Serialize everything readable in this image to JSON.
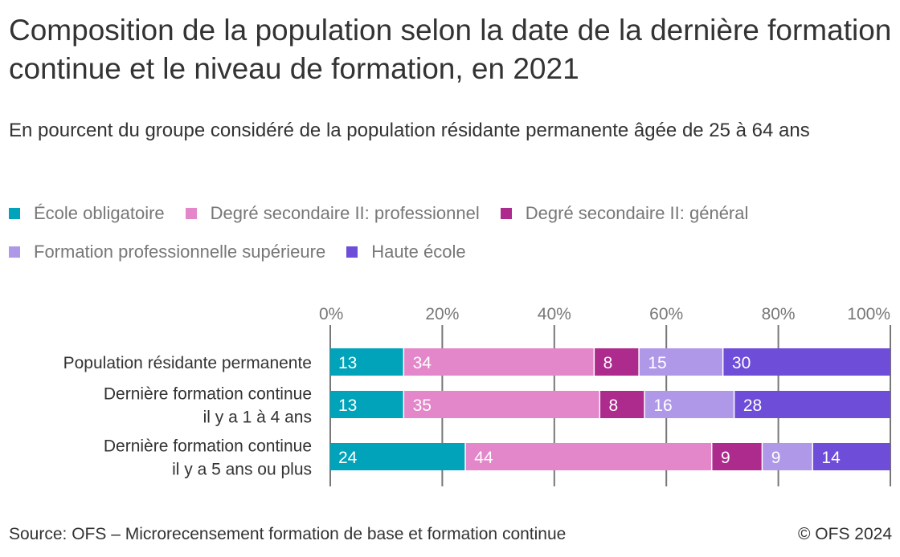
{
  "title": "Composition de la population selon la date de la dernière formation continue et le niveau de formation, en 2021",
  "subtitle": "En pourcent du groupe considéré de la population résidante permanente âgée de 25 à 64 ans",
  "source": "Source: OFS – Microrecensement formation de base et formation continue",
  "copyright": "© OFS 2024",
  "chart_data": {
    "type": "bar",
    "orientation": "horizontal",
    "stacked": true,
    "xlim": [
      0,
      100
    ],
    "ticks": [
      "0%",
      "20%",
      "40%",
      "60%",
      "80%",
      "100%"
    ],
    "tick_values": [
      0,
      20,
      40,
      60,
      80,
      100
    ],
    "grid": true,
    "legend_placement": "top",
    "categories": [
      [
        "Population résidante permanente"
      ],
      [
        "Dernière formation continue",
        "il y a 1 à 4 ans"
      ],
      [
        "Dernière formation continue",
        "il y a 5 ans ou plus"
      ]
    ],
    "series": [
      {
        "name": "École obligatoire",
        "color": "#00a3b9",
        "values": [
          13,
          13,
          24
        ]
      },
      {
        "name": "Degré secondaire II: professionnel",
        "color": "#e486ca",
        "values": [
          34,
          35,
          44
        ]
      },
      {
        "name": "Degré secondaire II: général",
        "color": "#ad2b8d",
        "values": [
          8,
          8,
          9
        ]
      },
      {
        "name": "Formation professionnelle supérieure",
        "color": "#af98e8",
        "values": [
          15,
          16,
          9
        ]
      },
      {
        "name": "Haute école",
        "color": "#6e4dd8",
        "values": [
          30,
          28,
          14
        ]
      }
    ]
  }
}
